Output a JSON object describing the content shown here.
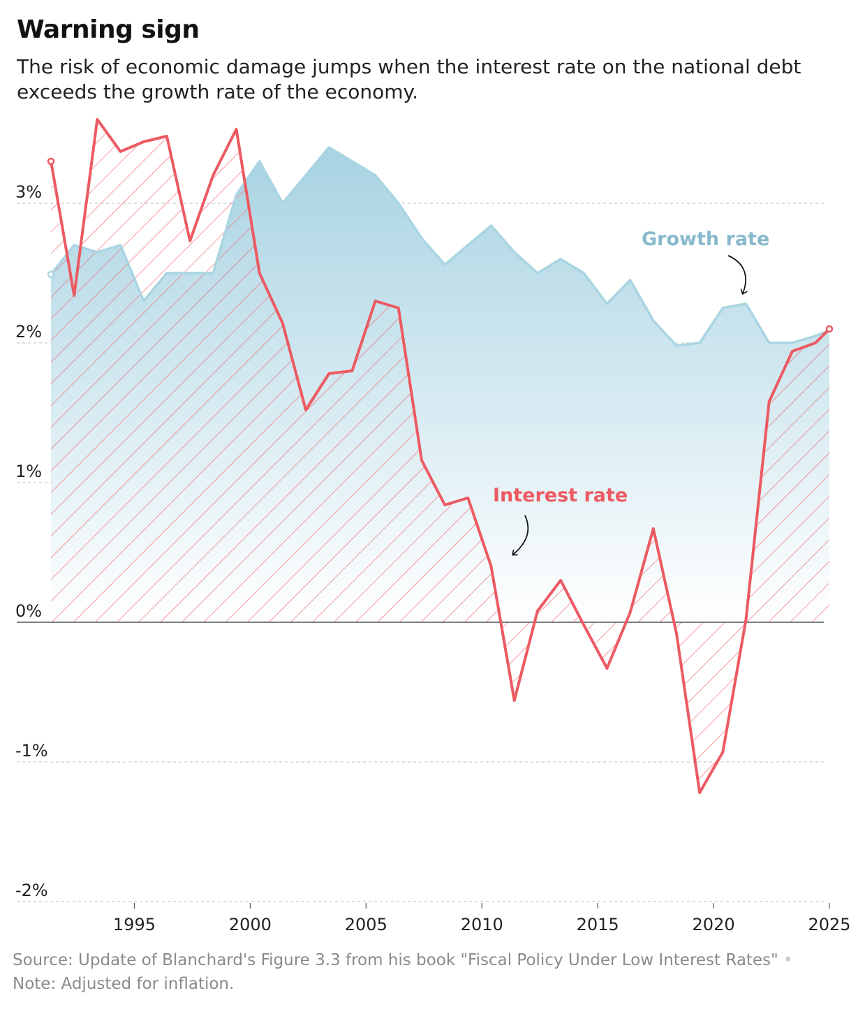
{
  "title": "Warning sign",
  "subtitle": "The risk of economic damage jumps when the interest rate on the national debt exceeds the growth rate of the economy.",
  "footer": {
    "source": "Source: Update of Blanchard's Figure 3.3 from his book \"Fiscal Policy Under Low Interest Rates\"",
    "separator": "•",
    "note": "Note: Adjusted for inflation."
  },
  "colors": {
    "growth_line": "#a9d5e2",
    "growth_fill_top": "#a8d3e2",
    "growth_fill_bottom": "#ffffff",
    "interest_line": "#ec5a62",
    "interest_hatch": "#ef6e74",
    "label_growth": "#88b9cc",
    "label_interest": "#ec5a62"
  },
  "chart_data": {
    "type": "line",
    "title": "Warning sign",
    "xlabel": "",
    "ylabel": "",
    "xlim": [
      1991.4,
      2025.0
    ],
    "ylim": [
      -2,
      3.5
    ],
    "x_ticks": [
      1995,
      2000,
      2005,
      2010,
      2015,
      2020,
      2025
    ],
    "x_tick_labels": [
      "1995",
      "2000",
      "2005",
      "2010",
      "2015",
      "2020",
      "2025"
    ],
    "y_ticks": [
      3,
      2,
      1,
      0,
      -1,
      -2
    ],
    "y_tick_labels": [
      "3%",
      "2%",
      "1%",
      "0%",
      "-1%",
      "-2%"
    ],
    "grid": true,
    "x": [
      1991.4,
      1992.4,
      1993.4,
      1994.4,
      1995.4,
      1996.4,
      1997.4,
      1998.4,
      1999.4,
      2000.4,
      2001.4,
      2002.4,
      2003.4,
      2004.4,
      2005.4,
      2006.4,
      2007.4,
      2008.4,
      2009.4,
      2010.4,
      2011.4,
      2012.4,
      2013.4,
      2014.4,
      2015.4,
      2016.4,
      2017.4,
      2018.4,
      2019.4,
      2020.4,
      2021.4,
      2022.4,
      2023.4,
      2024.4,
      2025.0
    ],
    "series": [
      {
        "name": "Growth rate",
        "values": [
          2.49,
          2.7,
          2.65,
          2.7,
          2.3,
          2.5,
          2.5,
          2.5,
          3.06,
          3.3,
          3.0,
          3.2,
          3.4,
          3.3,
          3.2,
          3.0,
          2.75,
          2.56,
          2.7,
          2.84,
          2.65,
          2.5,
          2.6,
          2.5,
          2.28,
          2.45,
          2.16,
          1.98,
          2.0,
          2.25,
          2.28,
          2.0,
          2.0,
          2.05,
          2.09
        ],
        "label": "Growth rate"
      },
      {
        "name": "Interest rate",
        "values": [
          3.3,
          2.34,
          3.6,
          3.37,
          3.44,
          3.48,
          2.73,
          3.2,
          3.53,
          2.5,
          2.14,
          1.52,
          1.78,
          1.8,
          2.3,
          2.25,
          1.16,
          0.84,
          0.89,
          0.4,
          -0.56,
          0.08,
          0.3,
          -0.02,
          -0.33,
          0.07,
          0.67,
          -0.08,
          -1.22,
          -0.93,
          0.02,
          1.58,
          1.94,
          2.0,
          2.1
        ],
        "label": "Interest rate"
      }
    ]
  }
}
